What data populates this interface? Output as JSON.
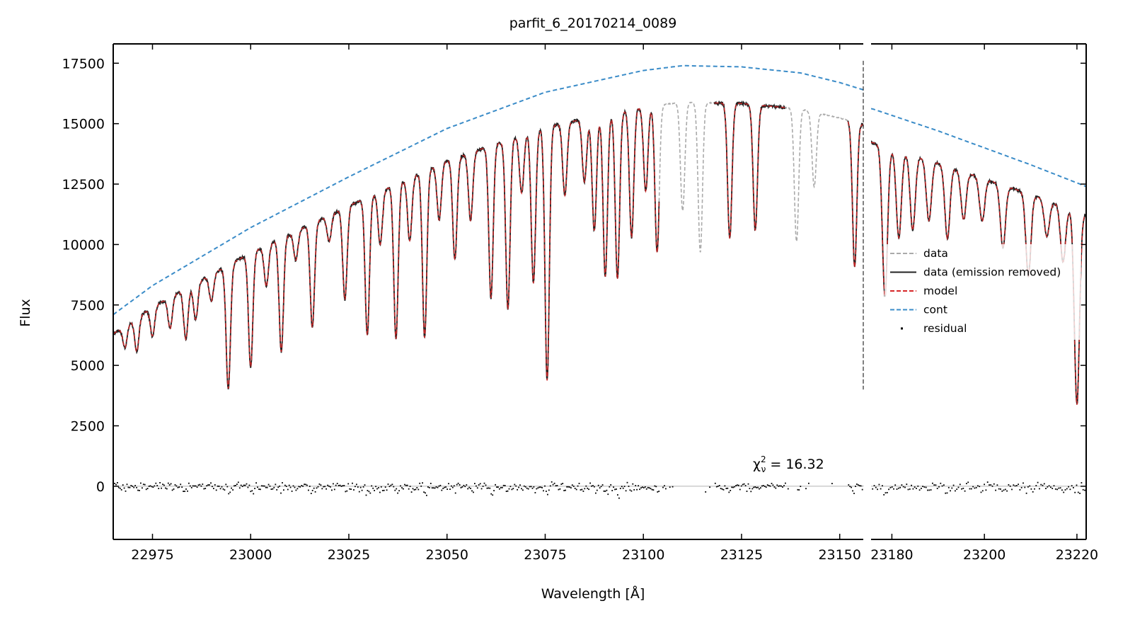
{
  "chart_data": {
    "type": "line",
    "title": "parfit_6_20170214_0089",
    "xlabel": "Wavelength [Å]",
    "ylabel": "Flux",
    "ylim": [
      -2200,
      18300
    ],
    "panels": [
      {
        "xlim": [
          22965,
          23156
        ],
        "xticks": [
          22975,
          23000,
          23025,
          23050,
          23075,
          23100,
          23125,
          23150
        ]
      },
      {
        "xlim": [
          23175.5,
          23222
        ],
        "xticks": [
          23180,
          23200,
          23220
        ]
      }
    ],
    "yticks": [
      0,
      2500,
      5000,
      7500,
      10000,
      12500,
      15000,
      17500
    ],
    "xtick_labels": [
      "22975",
      "23000",
      "23025",
      "23050",
      "23075",
      "23100",
      "23125",
      "23150",
      "23180",
      "23200",
      "23220"
    ],
    "ytick_labels": [
      "0",
      "2500",
      "5000",
      "7500",
      "10000",
      "12500",
      "15000",
      "17500"
    ],
    "annotation": "χ²ᵥ = 16.32",
    "annotation_parts": {
      "base": "χ",
      "sup": "2",
      "sub": "ν",
      "rest": " = 16.32"
    },
    "vertical_marker_x": 23156,
    "legend": {
      "placement": "center-right",
      "entries": [
        {
          "label": "data",
          "style": "dashed",
          "color": "#aaaaaa"
        },
        {
          "label": "data (emission removed)",
          "style": "solid",
          "color": "#222222"
        },
        {
          "label": "model",
          "style": "dashed",
          "color": "#d62728"
        },
        {
          "label": "cont",
          "style": "dashed",
          "color": "#3b8cc8"
        },
        {
          "label": "residual",
          "style": "marker",
          "color": "#000000"
        }
      ]
    },
    "continuum": {
      "x": [
        22965,
        22975,
        23000,
        23025,
        23050,
        23075,
        23100,
        23110,
        23125,
        23140,
        23150,
        23156,
        23176,
        23190,
        23200,
        23210,
        23222
      ],
      "y": [
        7100,
        8300,
        10700,
        12800,
        14800,
        16300,
        17200,
        17400,
        17350,
        17100,
        16700,
        16400,
        15600,
        14700,
        14000,
        13300,
        12400
      ]
    },
    "gray_gaps": [
      [
        23104,
        23118
      ],
      [
        23136,
        23152
      ]
    ],
    "absorption_lines": [
      {
        "x": 22968.0,
        "d": 900
      },
      {
        "x": 22971.0,
        "d": 1400
      },
      {
        "x": 22975.0,
        "d": 1200
      },
      {
        "x": 22979.5,
        "d": 1300
      },
      {
        "x": 22983.5,
        "d": 2100
      },
      {
        "x": 22986.0,
        "d": 1500
      },
      {
        "x": 22990.0,
        "d": 1100
      },
      {
        "x": 22994.3,
        "d": 5100
      },
      {
        "x": 23000.0,
        "d": 4700
      },
      {
        "x": 23004.0,
        "d": 1700
      },
      {
        "x": 23007.8,
        "d": 4700
      },
      {
        "x": 23011.5,
        "d": 1200
      },
      {
        "x": 23015.7,
        "d": 4300
      },
      {
        "x": 23020.0,
        "d": 1100
      },
      {
        "x": 23024.0,
        "d": 3800
      },
      {
        "x": 23029.7,
        "d": 5700
      },
      {
        "x": 23033.0,
        "d": 2200
      },
      {
        "x": 23037.0,
        "d": 6400
      },
      {
        "x": 23040.5,
        "d": 2600
      },
      {
        "x": 23044.3,
        "d": 6900
      },
      {
        "x": 23048.0,
        "d": 2300
      },
      {
        "x": 23052.0,
        "d": 4200
      },
      {
        "x": 23056.0,
        "d": 2800
      },
      {
        "x": 23061.2,
        "d": 6300
      },
      {
        "x": 23065.5,
        "d": 7000
      },
      {
        "x": 23069.0,
        "d": 2400
      },
      {
        "x": 23072.0,
        "d": 6300
      },
      {
        "x": 23075.5,
        "d": 10500
      },
      {
        "x": 23080.0,
        "d": 3000
      },
      {
        "x": 23085.0,
        "d": 2600
      },
      {
        "x": 23087.5,
        "d": 4700
      },
      {
        "x": 23090.3,
        "d": 6700
      },
      {
        "x": 23093.4,
        "d": 6900
      },
      {
        "x": 23097.0,
        "d": 5300
      },
      {
        "x": 23100.6,
        "d": 3500
      },
      {
        "x": 23103.5,
        "d": 6100
      },
      {
        "x": 23110.0,
        "d": 4500
      },
      {
        "x": 23114.5,
        "d": 6200
      },
      {
        "x": 23122.0,
        "d": 5600
      },
      {
        "x": 23128.5,
        "d": 5200
      },
      {
        "x": 23139.0,
        "d": 5500
      },
      {
        "x": 23143.5,
        "d": 3100
      },
      {
        "x": 23153.8,
        "d": 6000
      },
      {
        "x": 23178.5,
        "d": 6200
      },
      {
        "x": 23181.5,
        "d": 3600
      },
      {
        "x": 23184.5,
        "d": 3100
      },
      {
        "x": 23188.0,
        "d": 2500
      },
      {
        "x": 23192.0,
        "d": 3000
      },
      {
        "x": 23195.5,
        "d": 2000
      },
      {
        "x": 23199.5,
        "d": 1800
      },
      {
        "x": 23204.0,
        "d": 2600
      },
      {
        "x": 23209.5,
        "d": 3400
      },
      {
        "x": 23213.5,
        "d": 1500
      },
      {
        "x": 23217.0,
        "d": 2300
      },
      {
        "x": 23220.0,
        "d": 8000
      }
    ]
  }
}
